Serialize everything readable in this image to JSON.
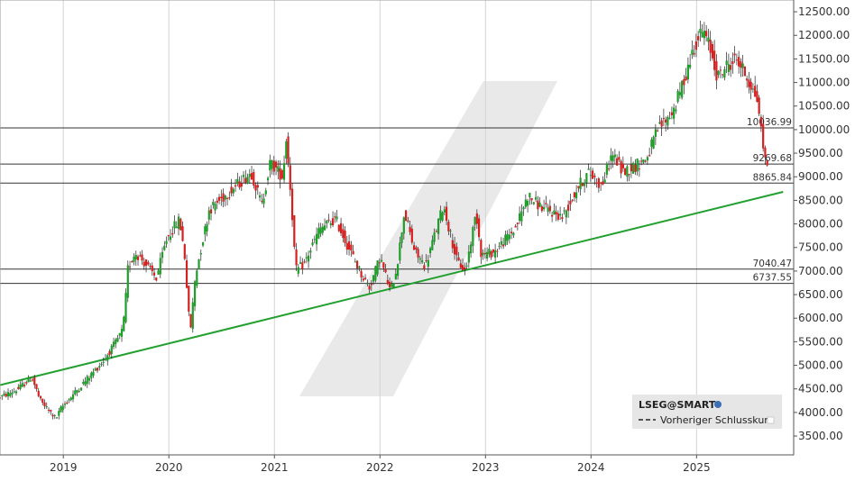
{
  "chart_data": {
    "type": "candlestick",
    "y_axis": {
      "position": "right",
      "ylim": [
        3100,
        12750
      ],
      "ticks": [
        3500,
        4000,
        4500,
        5000,
        5500,
        6000,
        6500,
        7000,
        7500,
        8000,
        8500,
        9000,
        9500,
        10000,
        10500,
        11000,
        11500,
        12000,
        12500
      ],
      "tick_labels": [
        "3500.00",
        "4000.00",
        "4500.00",
        "5000.00",
        "5500.00",
        "6000.00",
        "6500.00",
        "7000.00",
        "7500.00",
        "8000.00",
        "8500.00",
        "9000.00",
        "9500.00",
        "10000.00",
        "10500.00",
        "11000.00",
        "11500.00",
        "12000.00",
        "12500.00"
      ]
    },
    "x_axis": {
      "range_years": [
        2018.4,
        2025.92
      ],
      "ticks": [
        2019,
        2020,
        2021,
        2022,
        2023,
        2024,
        2025
      ],
      "tick_labels": [
        "2019",
        "2020",
        "2021",
        "2022",
        "2023",
        "2024",
        "2025"
      ]
    },
    "grid": "vertical",
    "horizontal_levels": [
      {
        "value": 10036.99,
        "label": "10036.99"
      },
      {
        "value": 9269.68,
        "label": "9269.68"
      },
      {
        "value": 8865.84,
        "label": "8865.84"
      },
      {
        "value": 7040.47,
        "label": "7040.47"
      },
      {
        "value": 6737.55,
        "label": "6737.55"
      }
    ],
    "trendline": {
      "color": "#22a02f",
      "points": [
        [
          2018.4,
          4580
        ],
        [
          2025.82,
          8680
        ]
      ]
    },
    "candle_colors": {
      "up": "#1e9e29",
      "down": "#d62020"
    },
    "price_path": [
      [
        2018.4,
        4300
      ],
      [
        2018.58,
        4480
      ],
      [
        2018.72,
        4750
      ],
      [
        2018.8,
        4250
      ],
      [
        2018.95,
        3870
      ],
      [
        2019.0,
        4100
      ],
      [
        2019.2,
        4600
      ],
      [
        2019.4,
        5100
      ],
      [
        2019.52,
        5500
      ],
      [
        2019.58,
        5750
      ],
      [
        2019.6,
        6100
      ],
      [
        2019.63,
        7050
      ],
      [
        2019.7,
        7400
      ],
      [
        2019.78,
        7200
      ],
      [
        2019.9,
        6850
      ],
      [
        2020.0,
        7700
      ],
      [
        2020.12,
        8100
      ],
      [
        2020.17,
        7300
      ],
      [
        2020.22,
        5650
      ],
      [
        2020.27,
        6900
      ],
      [
        2020.4,
        8300
      ],
      [
        2020.6,
        8700
      ],
      [
        2020.8,
        9100
      ],
      [
        2020.9,
        8400
      ],
      [
        2020.98,
        9300
      ],
      [
        2021.1,
        9000
      ],
      [
        2021.13,
        9850
      ],
      [
        2021.18,
        8500
      ],
      [
        2021.22,
        7000
      ],
      [
        2021.3,
        7150
      ],
      [
        2021.45,
        7900
      ],
      [
        2021.6,
        8100
      ],
      [
        2021.7,
        7600
      ],
      [
        2021.85,
        6900
      ],
      [
        2021.92,
        6650
      ],
      [
        2022.02,
        7300
      ],
      [
        2022.12,
        6550
      ],
      [
        2022.18,
        7100
      ],
      [
        2022.25,
        8250
      ],
      [
        2022.35,
        7400
      ],
      [
        2022.45,
        7100
      ],
      [
        2022.62,
        8400
      ],
      [
        2022.75,
        7200
      ],
      [
        2022.83,
        7000
      ],
      [
        2022.93,
        8250
      ],
      [
        2022.98,
        7350
      ],
      [
        2023.1,
        7400
      ],
      [
        2023.3,
        7900
      ],
      [
        2023.42,
        8600
      ],
      [
        2023.55,
        8350
      ],
      [
        2023.75,
        8150
      ],
      [
        2023.9,
        8800
      ],
      [
        2024.0,
        9100
      ],
      [
        2024.12,
        8800
      ],
      [
        2024.22,
        9500
      ],
      [
        2024.32,
        9100
      ],
      [
        2024.45,
        9250
      ],
      [
        2024.55,
        9400
      ],
      [
        2024.65,
        10000
      ],
      [
        2024.8,
        10400
      ],
      [
        2024.9,
        11050
      ],
      [
        2025.0,
        11800
      ],
      [
        2025.08,
        12100
      ],
      [
        2025.15,
        11700
      ],
      [
        2025.22,
        11100
      ],
      [
        2025.3,
        11350
      ],
      [
        2025.4,
        11500
      ],
      [
        2025.5,
        11100
      ],
      [
        2025.55,
        10850
      ],
      [
        2025.6,
        10600
      ],
      [
        2025.64,
        9800
      ],
      [
        2025.67,
        9350
      ]
    ],
    "legend": {
      "placement": "bottom-right",
      "source": "LSEG@SMART",
      "entries": [
        "Vorheriger Schlusskurs"
      ]
    }
  }
}
